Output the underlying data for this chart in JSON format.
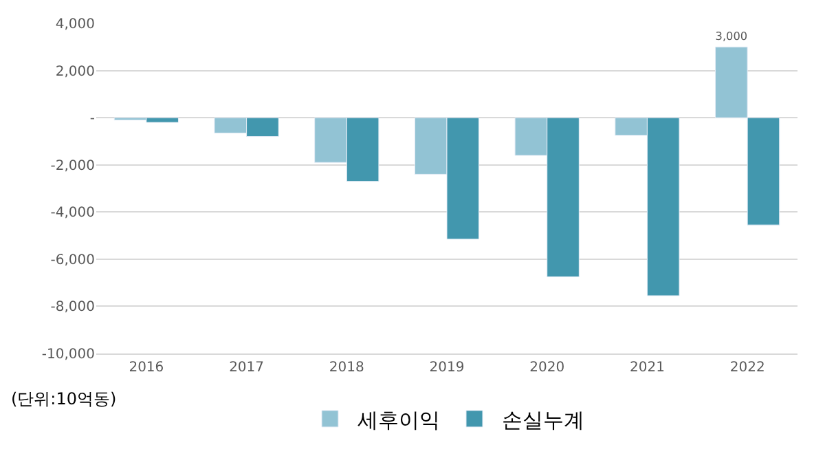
{
  "chart_data": {
    "type": "bar",
    "categories": [
      "2016",
      "2017",
      "2018",
      "2019",
      "2020",
      "2021",
      "2022"
    ],
    "series": [
      {
        "name": "세후이익",
        "color": "#92c3d4",
        "values": [
          -100,
          -650,
          -1900,
          -2400,
          -1600,
          -750,
          3000
        ],
        "value_labels": [
          null,
          null,
          null,
          null,
          null,
          null,
          "3,000"
        ]
      },
      {
        "name": "손실누계",
        "color": "#4297ae",
        "values": [
          -200,
          -800,
          -2700,
          -5150,
          -6750,
          -7550,
          -4550
        ]
      }
    ],
    "ylim": [
      -10000,
      4000
    ],
    "yticks": [
      {
        "value": -10000,
        "label": "-10,000"
      },
      {
        "value": -8000,
        "label": "-8,000"
      },
      {
        "value": -6000,
        "label": "-6,000"
      },
      {
        "value": -4000,
        "label": "-4,000"
      },
      {
        "value": -2000,
        "label": "-2,000"
      },
      {
        "value": 0,
        "label": "-"
      },
      {
        "value": 2000,
        "label": "2,000"
      },
      {
        "value": 4000,
        "label": "4,000"
      }
    ],
    "grid": "y",
    "legend": "bottom",
    "annotations": [
      "(단위:10억동)"
    ]
  }
}
